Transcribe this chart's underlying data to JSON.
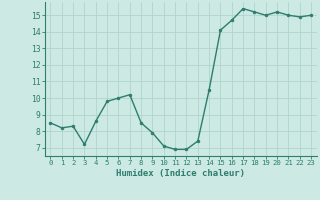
{
  "x": [
    0,
    1,
    2,
    3,
    4,
    5,
    6,
    7,
    8,
    9,
    10,
    11,
    12,
    13,
    14,
    15,
    16,
    17,
    18,
    19,
    20,
    21,
    22,
    23
  ],
  "y": [
    8.5,
    8.2,
    8.3,
    7.2,
    8.6,
    9.8,
    10.0,
    10.2,
    8.5,
    7.9,
    7.1,
    6.9,
    6.9,
    7.4,
    10.5,
    14.1,
    14.7,
    15.4,
    15.2,
    15.0,
    15.2,
    15.0,
    14.9,
    15.0
  ],
  "line_color": "#2e7d6e",
  "marker": "o",
  "markersize": 2.0,
  "linewidth": 1.0,
  "background_color": "#cce9e4",
  "grid_color": "#b0d4ce",
  "xlabel": "Humidex (Indice chaleur)",
  "xlim": [
    -0.5,
    23.5
  ],
  "ylim": [
    6.5,
    15.8
  ],
  "yticks": [
    7,
    8,
    9,
    10,
    11,
    12,
    13,
    14,
    15
  ],
  "xticks": [
    0,
    1,
    2,
    3,
    4,
    5,
    6,
    7,
    8,
    9,
    10,
    11,
    12,
    13,
    14,
    15,
    16,
    17,
    18,
    19,
    20,
    21,
    22,
    23
  ]
}
